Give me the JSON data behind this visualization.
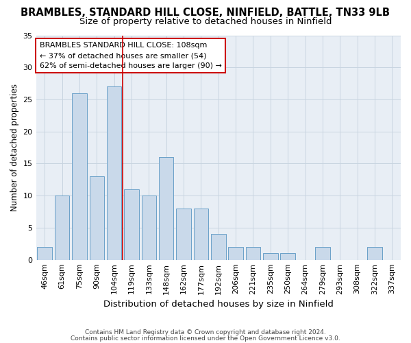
{
  "title": "BRAMBLES, STANDARD HILL CLOSE, NINFIELD, BATTLE, TN33 9LB",
  "subtitle": "Size of property relative to detached houses in Ninfield",
  "xlabel": "Distribution of detached houses by size in Ninfield",
  "ylabel": "Number of detached properties",
  "categories": [
    "46sqm",
    "61sqm",
    "75sqm",
    "90sqm",
    "104sqm",
    "119sqm",
    "133sqm",
    "148sqm",
    "162sqm",
    "177sqm",
    "192sqm",
    "206sqm",
    "221sqm",
    "235sqm",
    "250sqm",
    "264sqm",
    "279sqm",
    "293sqm",
    "308sqm",
    "322sqm",
    "337sqm"
  ],
  "values": [
    2,
    10,
    26,
    13,
    27,
    11,
    10,
    16,
    8,
    8,
    4,
    2,
    2,
    1,
    1,
    0,
    2,
    0,
    0,
    2,
    0
  ],
  "bar_color": "#c9d9ea",
  "bar_edge_color": "#6aa0c8",
  "ylim": [
    0,
    35
  ],
  "yticks": [
    0,
    5,
    10,
    15,
    20,
    25,
    30,
    35
  ],
  "red_line_index": 5,
  "annotation_text": "BRAMBLES STANDARD HILL CLOSE: 108sqm\n← 37% of detached houses are smaller (54)\n62% of semi-detached houses are larger (90) →",
  "footer_line1": "Contains HM Land Registry data © Crown copyright and database right 2024.",
  "footer_line2": "Contains public sector information licensed under the Open Government Licence v3.0.",
  "title_fontsize": 10.5,
  "subtitle_fontsize": 9.5,
  "xlabel_fontsize": 9.5,
  "ylabel_fontsize": 8.5,
  "tick_fontsize": 8,
  "annotation_fontsize": 8,
  "footer_fontsize": 6.5,
  "background_color": "#ffffff",
  "axes_bg_color": "#e8eef5",
  "grid_color": "#c8d4e0",
  "annotation_box_facecolor": "#ffffff",
  "annotation_box_edgecolor": "#cc0000",
  "red_line_color": "#cc0000"
}
